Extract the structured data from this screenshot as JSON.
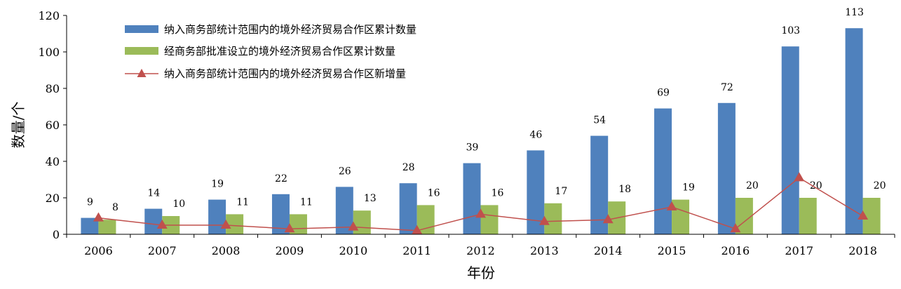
{
  "chart_data": {
    "type": "bar",
    "title": "",
    "xlabel": "年份",
    "ylabel": "数量/个",
    "ylim": [
      0,
      120
    ],
    "yticks": [
      0,
      20,
      40,
      60,
      80,
      100,
      120
    ],
    "grid": false,
    "legend_position": "top-left",
    "categories": [
      "2006",
      "2007",
      "2008",
      "2009",
      "2010",
      "2011",
      "2012",
      "2013",
      "2014",
      "2015",
      "2016",
      "2017",
      "2018"
    ],
    "series": [
      {
        "name": "纳入商务部统计范围内的境外经济贸易合作区累计数量",
        "type": "bar",
        "color": "#4f81bd",
        "values": [
          9,
          14,
          19,
          22,
          26,
          28,
          39,
          46,
          54,
          69,
          72,
          103,
          113
        ],
        "data_labels": true
      },
      {
        "name": "经商务部批准设立的境外经济贸易合作区累计数量",
        "type": "bar",
        "color": "#9bbb59",
        "values": [
          8,
          10,
          11,
          11,
          13,
          16,
          16,
          17,
          18,
          19,
          20,
          20,
          20
        ],
        "data_labels": true
      },
      {
        "name": "纳入商务部统计范围内的境外经济贸易合作区新增量",
        "type": "line",
        "marker": "triangle",
        "color": "#c0504d",
        "values": [
          9,
          5,
          5,
          3,
          4,
          2,
          11,
          7,
          8,
          15,
          3,
          31,
          10
        ],
        "data_labels": false
      }
    ]
  }
}
